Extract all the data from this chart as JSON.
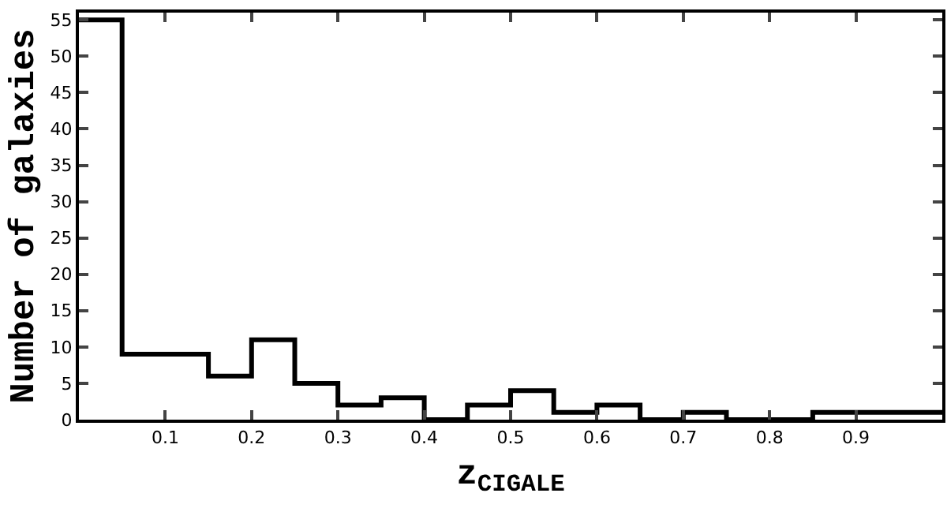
{
  "chart_data": {
    "type": "histogram",
    "xlabel": "z$_{CIGALE}$",
    "ylabel": "Number of galaxies",
    "bins": [
      0,
      0.05,
      0.1,
      0.15,
      0.2,
      0.25,
      0.3,
      0.35,
      0.4,
      0.45,
      0.5,
      0.55,
      0.6,
      0.65,
      0.7,
      0.75,
      0.8,
      0.85,
      0.9,
      0.95,
      1.0
    ],
    "values": [
      55,
      9,
      9,
      6,
      11,
      5,
      2,
      3,
      0,
      2,
      4,
      1,
      2,
      0,
      1,
      0,
      0,
      1,
      1,
      1
    ],
    "color": "#000000",
    "xlim": [
      0,
      1
    ],
    "xticks": [
      0.1,
      0.2,
      0.3,
      0.4,
      0.5,
      0.6,
      0.7,
      0.8,
      0.9
    ],
    "ylim": [
      0,
      56
    ],
    "yticks": [
      0,
      5,
      10,
      15,
      20,
      25,
      30,
      35,
      40,
      45,
      50,
      55
    ],
    "tick_labels": "xy"
  }
}
